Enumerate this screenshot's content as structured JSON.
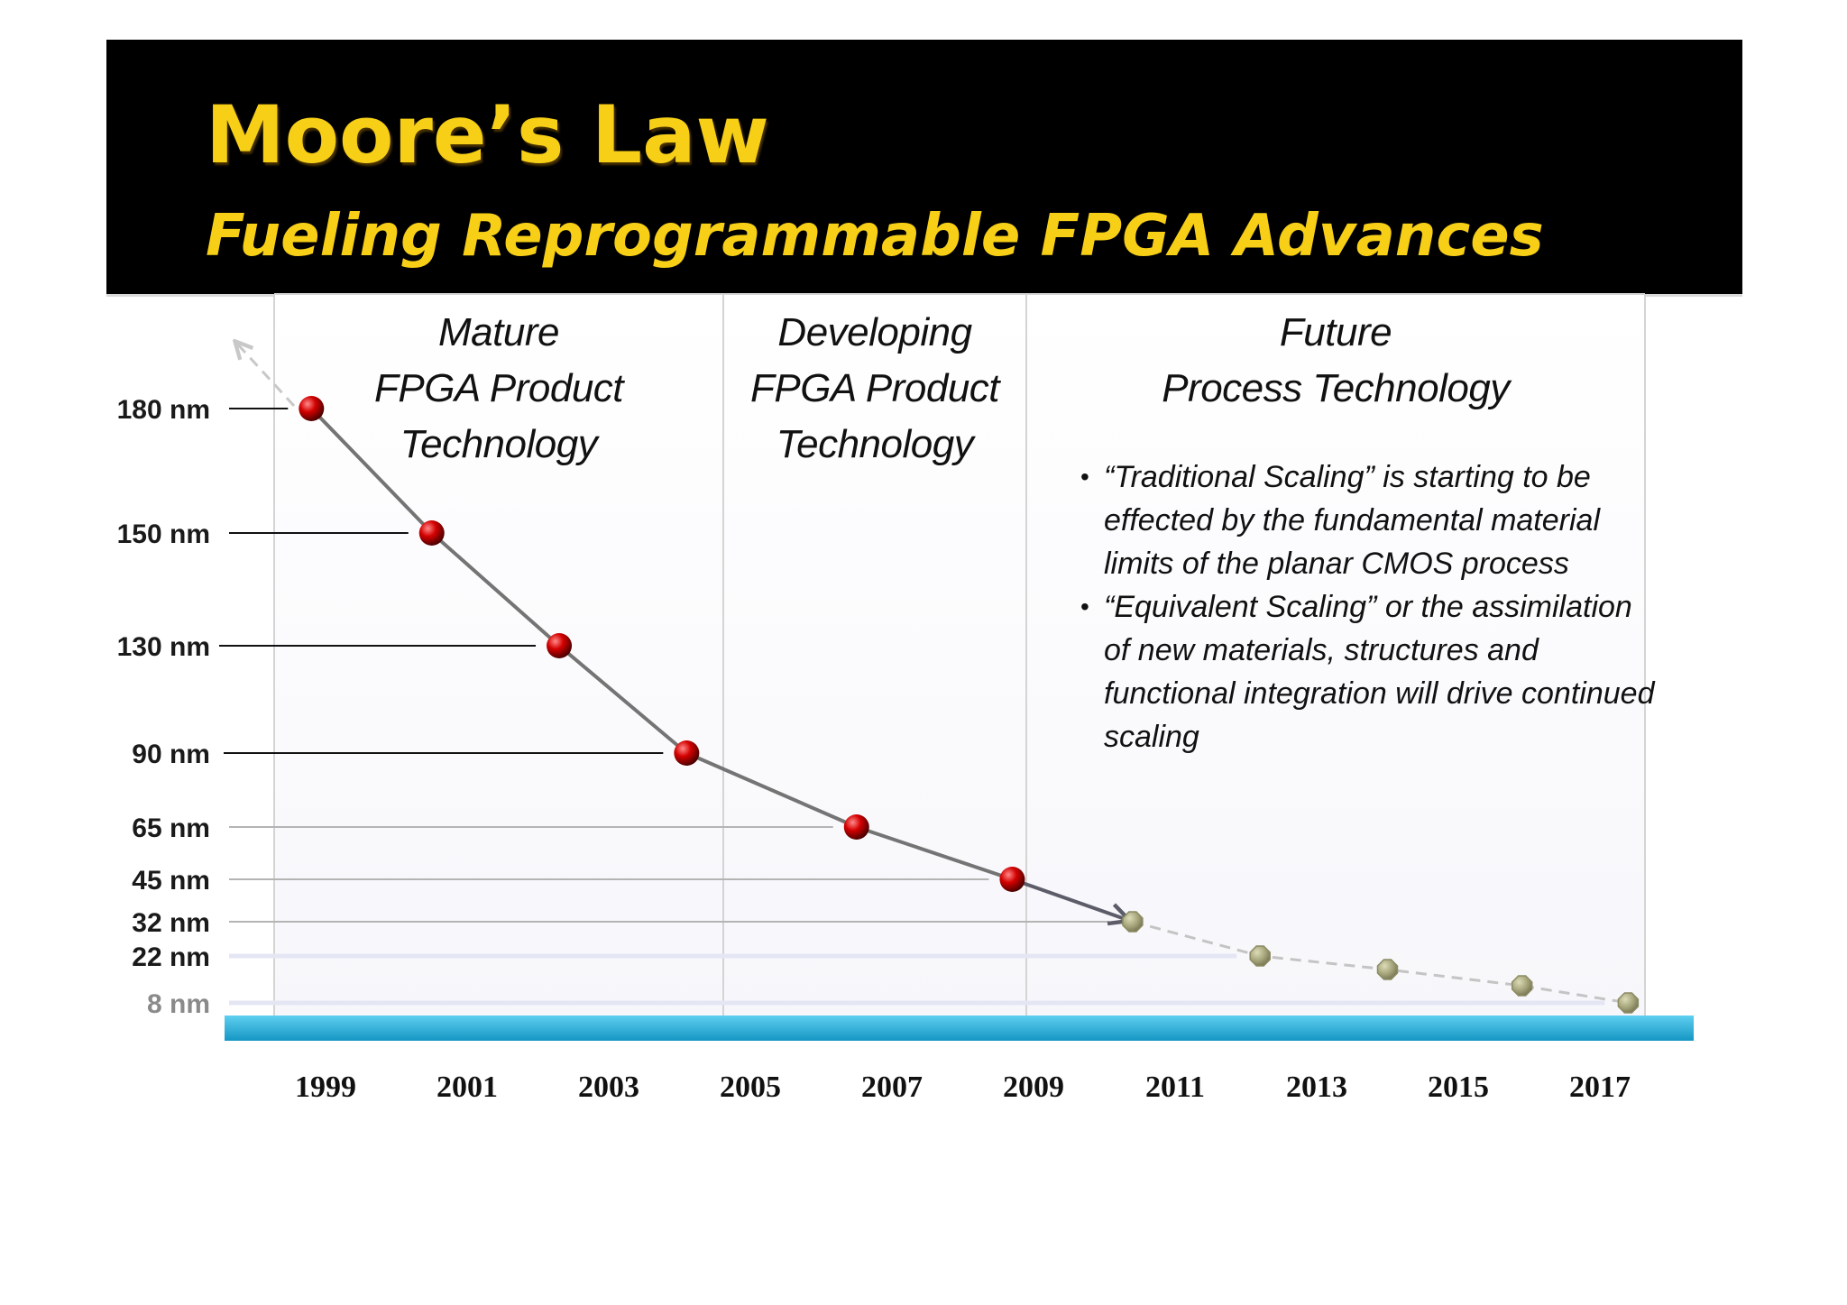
{
  "header": {
    "title": "Moore’s Law",
    "subtitle": "Fueling Reprogrammable FPGA Advances",
    "title_color": "#f7cf16",
    "background": "#000000"
  },
  "sections": [
    {
      "lines": [
        "Mature",
        "FPGA Product",
        "Technology"
      ]
    },
    {
      "lines": [
        "Developing",
        "FPGA Product",
        "Technology"
      ]
    },
    {
      "lines": [
        "Future",
        "Process Technology"
      ]
    }
  ],
  "notes": [
    "“Traditional Scaling” is starting to be effected by the fundamental material limits of the planar CMOS process",
    "“Equivalent Scaling” or the assimilation of new materials, structures and functional integration will drive continued scaling"
  ],
  "chart_data": {
    "type": "line",
    "title": "Moore’s Law",
    "x_ticks": [
      "1999",
      "2001",
      "2003",
      "2005",
      "2007",
      "2009",
      "2011",
      "2013",
      "2015",
      "2017"
    ],
    "y_levels": [
      {
        "label": "180 nm",
        "value": 180
      },
      {
        "label": "150 nm",
        "value": 150
      },
      {
        "label": "130 nm",
        "value": 130
      },
      {
        "label": "90 nm",
        "value": 90
      },
      {
        "label": "65 nm",
        "value": 65
      },
      {
        "label": "45 nm",
        "value": 45
      },
      {
        "label": "32 nm",
        "value": 32
      },
      {
        "label": "22 nm",
        "value": 22
      },
      {
        "label": "8 nm",
        "value": 8
      }
    ],
    "series": [
      {
        "name": "Mature / Developing FPGA product nodes",
        "style": "solid",
        "color": "#d40000",
        "points": [
          {
            "year": 1998.8,
            "nm": 180
          },
          {
            "year": 2000.5,
            "nm": 150
          },
          {
            "year": 2002.3,
            "nm": 130
          },
          {
            "year": 2004.1,
            "nm": 90
          },
          {
            "year": 2006.5,
            "nm": 65
          },
          {
            "year": 2008.7,
            "nm": 45
          }
        ]
      },
      {
        "name": "Future process technology",
        "style": "dashed",
        "color": "#a5a47a",
        "points": [
          {
            "year": 2010.4,
            "nm": 32
          },
          {
            "year": 2012.2,
            "nm": 22
          },
          {
            "year": 2014.0,
            "nm": 18
          },
          {
            "year": 2015.9,
            "nm": 13
          },
          {
            "year": 2017.4,
            "nm": 8
          }
        ]
      }
    ],
    "xlabel": "",
    "ylabel": ""
  }
}
